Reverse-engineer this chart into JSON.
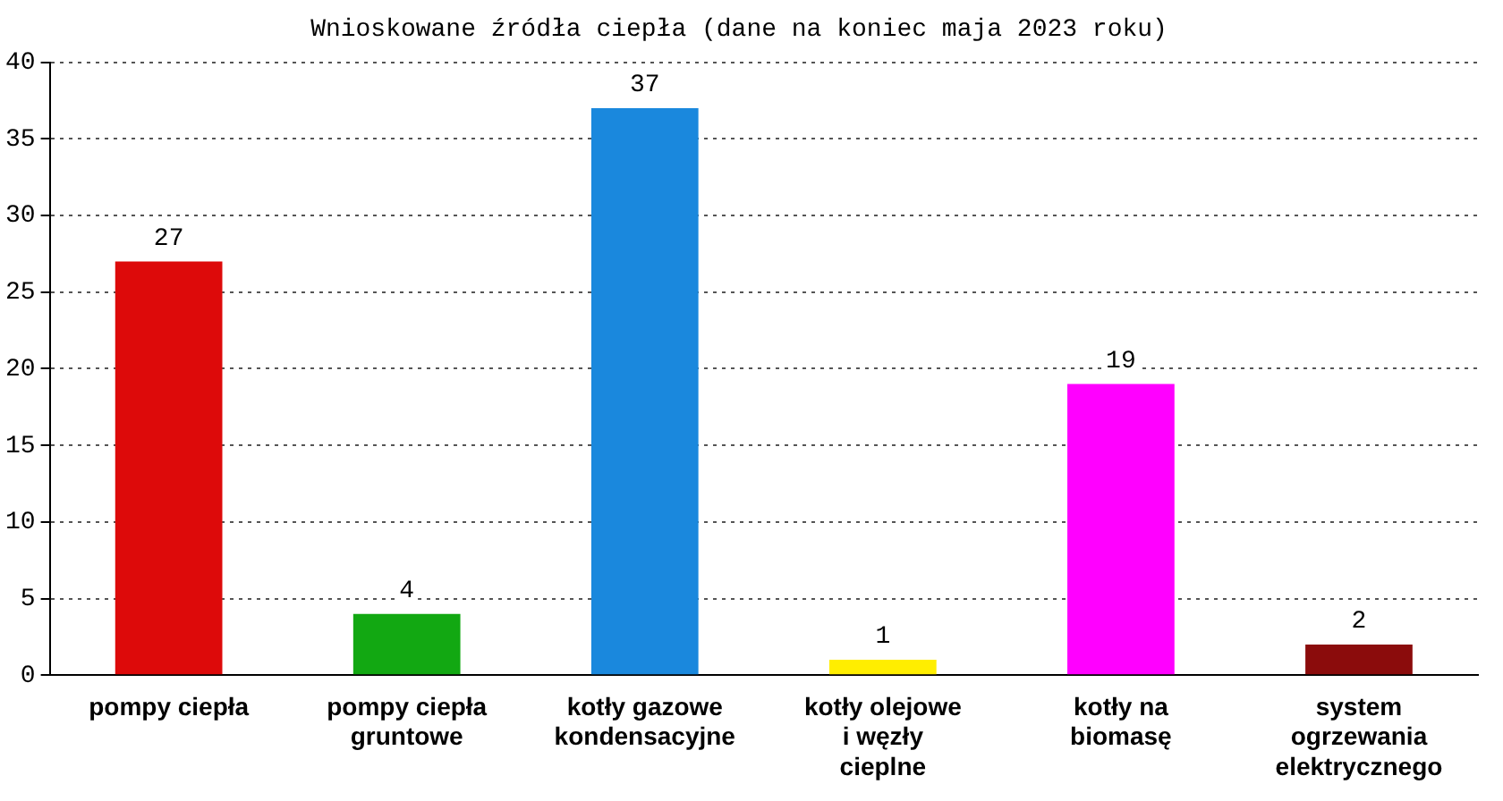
{
  "chart_data": {
    "type": "bar",
    "title": "Wnioskowane źródła ciepła (dane na koniec maja 2023 roku)",
    "categories": [
      "pompy ciepła",
      "pompy ciepła gruntowe",
      "kotły gazowe kondensacyjne",
      "kotły olejowe i węzły cieplne",
      "kotły na biomasę",
      "system ogrzewania elektrycznego"
    ],
    "values": [
      27,
      4,
      37,
      1,
      19,
      2
    ],
    "colors": [
      "#dd0a0a",
      "#12a812",
      "#1a88dd",
      "#ffee00",
      "#ff00ff",
      "#8b0c0c"
    ],
    "ylim": [
      0,
      40
    ],
    "yticks": [
      0,
      5,
      10,
      15,
      20,
      25,
      30,
      35,
      40
    ],
    "grid": "y",
    "data_labels": true
  }
}
